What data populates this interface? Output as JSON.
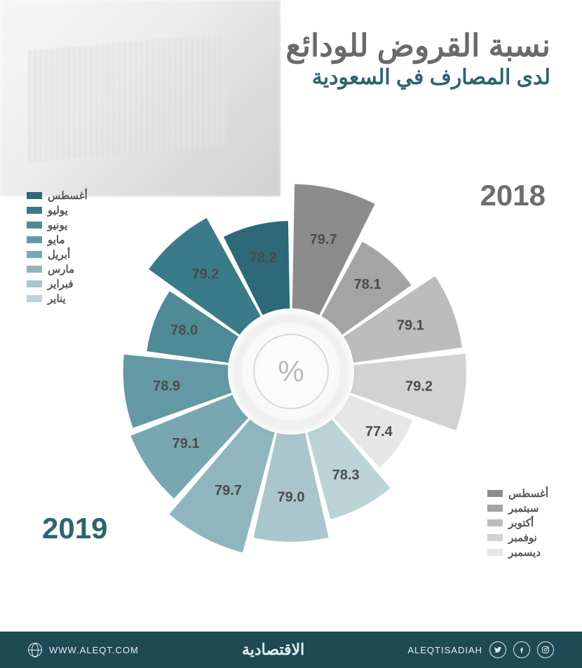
{
  "title": {
    "main": "نسبة القروض للودائع",
    "sub": "لدى المصارف في السعودية",
    "main_color": "#6a6a6a",
    "sub_color": "#2d6470",
    "main_fontsize": 44,
    "sub_fontsize": 30
  },
  "years": {
    "y2018": {
      "label": "2018",
      "color": "#6d6d6d",
      "fontsize": 42
    },
    "y2019": {
      "label": "2019",
      "color": "#2d6470",
      "fontsize": 42
    }
  },
  "chart": {
    "type": "radial-bar",
    "center_symbol": "%",
    "center_symbol_color": "#b8b8b8",
    "background_color": "#ffffff",
    "inner_radius": 90,
    "gap_deg": 2.2,
    "value_min": 76.5,
    "value_max": 80.2,
    "radius_min": 155,
    "radius_max": 285,
    "label_fontsize": 20,
    "label_weight": 700,
    "slices": [
      {
        "month": "أغسطس",
        "year": 2018,
        "value": 79.7,
        "color": "#8c8c8c"
      },
      {
        "month": "سبتمبر",
        "year": 2018,
        "value": 78.1,
        "color": "#a4a4a4"
      },
      {
        "month": "أكتوبر",
        "year": 2018,
        "value": 79.1,
        "color": "#bcbcbc"
      },
      {
        "month": "نوفمبر",
        "year": 2018,
        "value": 79.2,
        "color": "#d2d2d2"
      },
      {
        "month": "ديسمبر",
        "year": 2018,
        "value": 77.4,
        "color": "#e6e6e6"
      },
      {
        "month": "يناير",
        "year": 2019,
        "value": 78.3,
        "color": "#bcd3d7"
      },
      {
        "month": "فبراير",
        "year": 2019,
        "value": 79.0,
        "color": "#a8c6cc"
      },
      {
        "month": "مارس",
        "year": 2019,
        "value": 79.7,
        "color": "#8fb6be"
      },
      {
        "month": "أبريل",
        "year": 2019,
        "value": 79.1,
        "color": "#78a7b1"
      },
      {
        "month": "مايو",
        "year": 2019,
        "value": 78.9,
        "color": "#6399a5"
      },
      {
        "month": "يونيو",
        "year": 2019,
        "value": 78.0,
        "color": "#4f8a97"
      },
      {
        "month": "يوليو",
        "year": 2019,
        "value": 79.2,
        "color": "#3b7a89"
      },
      {
        "month": "أغسطس",
        "year": 2019,
        "value": 78.2,
        "color": "#2d6976"
      }
    ]
  },
  "legend_2018": {
    "items": [
      {
        "label": "أغسطس",
        "color": "#8c8c8c"
      },
      {
        "label": "سبتمبر",
        "color": "#a4a4a4"
      },
      {
        "label": "أكتوبر",
        "color": "#bcbcbc"
      },
      {
        "label": "نوفمبر",
        "color": "#d2d2d2"
      },
      {
        "label": "ديسمبر",
        "color": "#e6e6e6"
      }
    ]
  },
  "legend_2019": {
    "items": [
      {
        "label": "أغسطس",
        "color": "#2d6976"
      },
      {
        "label": "يوليو",
        "color": "#3b7a89"
      },
      {
        "label": "يونيو",
        "color": "#4f8a97"
      },
      {
        "label": "مايو",
        "color": "#6399a5"
      },
      {
        "label": "أبريل",
        "color": "#78a7b1"
      },
      {
        "label": "مارس",
        "color": "#8fb6be"
      },
      {
        "label": "فبراير",
        "color": "#a8c6cc"
      },
      {
        "label": "يناير",
        "color": "#bcd3d7"
      }
    ]
  },
  "footer": {
    "handle": "ALEQTISADIAH",
    "brand": "الاقتصادية",
    "url": "WWW.ALEQT.COM",
    "bg_color": "#1d4a53",
    "text_color": "#e8eef0"
  }
}
